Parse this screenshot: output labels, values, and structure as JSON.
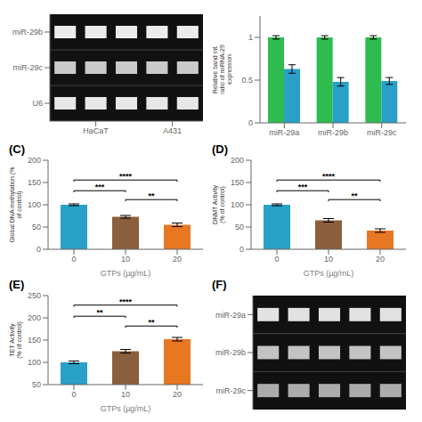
{
  "chart_data": [
    {
      "type": "heatmap",
      "rows": [
        "miR-29b",
        "miR-29c",
        "U6"
      ],
      "groups": [
        {
          "name": "HaCaT",
          "lanes": 3
        },
        {
          "name": "A431",
          "lanes": 2
        }
      ],
      "cells": [
        [
          0.92,
          0.92,
          0.92,
          0.92,
          0.92
        ],
        [
          0.78,
          0.78,
          0.78,
          0.78,
          0.78
        ],
        [
          0.9,
          0.9,
          0.9,
          0.9,
          0.9
        ]
      ],
      "color": "#ffffff"
    },
    {
      "type": "bar",
      "categories": [
        "miR-29a",
        "miR-29b",
        "miR-29c"
      ],
      "series": [
        {
          "color": "#2ebc4f",
          "values": [
            1.0,
            1.0,
            1.0
          ],
          "errors": [
            0.02,
            0.02,
            0.02
          ]
        },
        {
          "color": "#29a0c8",
          "values": [
            0.63,
            0.48,
            0.49
          ],
          "errors": [
            0.05,
            0.05,
            0.04
          ]
        }
      ],
      "ylabel": "Relative band int.\nratio of miRNA-29\nexpression",
      "ylim": [
        0,
        1.25
      ],
      "yticks": [
        0,
        0.5,
        1
      ]
    },
    {
      "type": "bar",
      "title": "(C)",
      "categories": [
        "0",
        "10",
        "20"
      ],
      "values": [
        100,
        73,
        55
      ],
      "errors": [
        2,
        3,
        4
      ],
      "colors": [
        "#29a0c8",
        "#8B5E3C",
        "#E87722"
      ],
      "xlabel": "GTPs (µg/mL)",
      "ylabel": "Global DNA methylation (%\nof control)",
      "ylim": [
        0,
        200
      ],
      "yticks": [
        0,
        50,
        100,
        150,
        200
      ],
      "annotations": [
        {
          "from": "0",
          "to": "10",
          "label": "***",
          "y": 128
        },
        {
          "from": "10",
          "to": "20",
          "label": "**",
          "y": 108
        },
        {
          "from": "0",
          "to": "20",
          "label": "****",
          "y": 152
        }
      ]
    },
    {
      "type": "bar",
      "title": "(D)",
      "categories": [
        "0",
        "10",
        "20"
      ],
      "values": [
        100,
        65,
        42
      ],
      "errors": [
        2,
        4,
        4
      ],
      "colors": [
        "#29a0c8",
        "#8B5E3C",
        "#E87722"
      ],
      "xlabel": "GTPs (µg/mL)",
      "ylabel": "DNMT Activity\n(% of control)",
      "ylim": [
        0,
        200
      ],
      "yticks": [
        0,
        50,
        100,
        150,
        200
      ],
      "annotations": [
        {
          "from": "0",
          "to": "10",
          "label": "***",
          "y": 128
        },
        {
          "from": "10",
          "to": "20",
          "label": "**",
          "y": 108
        },
        {
          "from": "0",
          "to": "20",
          "label": "****",
          "y": 152
        }
      ]
    },
    {
      "type": "bar",
      "title": "(E)",
      "categories": [
        "0",
        "10",
        "20"
      ],
      "values": [
        100,
        125,
        152
      ],
      "errors": [
        3,
        4,
        4
      ],
      "colors": [
        "#29a0c8",
        "#8B5E3C",
        "#E87722"
      ],
      "xlabel": "GTPs (µg/mL)",
      "ylabel": "TET Activity\n(% of control)",
      "ylim": [
        50,
        250
      ],
      "yticks": [
        50,
        100,
        150,
        200,
        250
      ],
      "annotations": [
        {
          "from": "0",
          "to": "10",
          "label": "**",
          "y": 200
        },
        {
          "from": "10",
          "to": "20",
          "label": "**",
          "y": 178
        },
        {
          "from": "0",
          "to": "20",
          "label": "****",
          "y": 225
        }
      ]
    },
    {
      "type": "heatmap",
      "title": "(F)",
      "rows": [
        "miR-29a",
        "miR-29b",
        "miR-29c"
      ],
      "cells": [
        [
          0.88,
          0.88,
          0.88,
          0.88,
          0.88
        ],
        [
          0.75,
          0.75,
          0.75,
          0.75,
          0.75
        ],
        [
          0.65,
          0.65,
          0.65,
          0.65,
          0.65
        ]
      ],
      "color": "#ffffff"
    }
  ]
}
